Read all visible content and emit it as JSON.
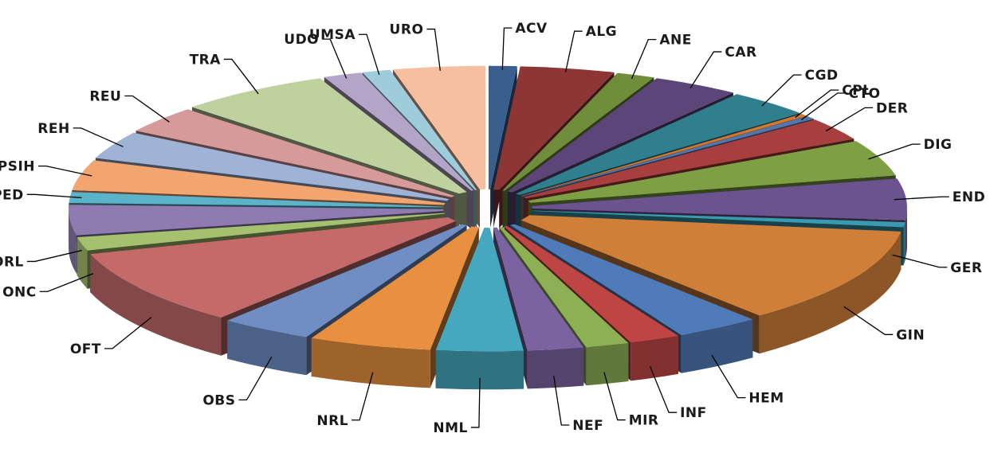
{
  "chart_data": {
    "type": "pie",
    "style": "3d-exploded",
    "legend": "none",
    "title": "",
    "categories": [
      "ACV",
      "ALG",
      "ANE",
      "CAR",
      "CGD",
      "CPL",
      "CTO",
      "DER",
      "DIG",
      "END",
      "GER",
      "GIN",
      "HEM",
      "INF",
      "MIR",
      "NEF",
      "NML",
      "NRL",
      "OBS",
      "OFT",
      "ONC",
      "ORL",
      "PED",
      "PSIH",
      "REH",
      "REU",
      "TRA",
      "UDO",
      "UMSA",
      "URO"
    ],
    "values": [
      1.1,
      3.7,
      1.5,
      3.4,
      3.3,
      0.3,
      0.4,
      2.7,
      4.3,
      4.9,
      0.6,
      11.5,
      3.3,
      2.0,
      1.7,
      2.2,
      3.4,
      4.8,
      3.6,
      9.1,
      1.6,
      3.6,
      1.3,
      3.6,
      3.3,
      3.2,
      6.0,
      1.5,
      1.1,
      3.6
    ],
    "colors": [
      "#3A5F8F",
      "#8E3535",
      "#6F8D3A",
      "#5C4679",
      "#2F7F8F",
      "#D5782F",
      "#5476A8",
      "#A83F3F",
      "#7F9F45",
      "#6B5390",
      "#3A9BB0",
      "#D07F38",
      "#4F7BB8",
      "#BF4545",
      "#8DB055",
      "#7A63A0",
      "#45A8BF",
      "#E8903F",
      "#6F8FC4",
      "#C46A6A",
      "#A5C06F",
      "#8F7BB0",
      "#5AB3C8",
      "#F2A56E",
      "#9FB3D6",
      "#D69A9A",
      "#BFD19F",
      "#B3A5C8",
      "#9FCCDB",
      "#F5BFA0"
    ]
  }
}
